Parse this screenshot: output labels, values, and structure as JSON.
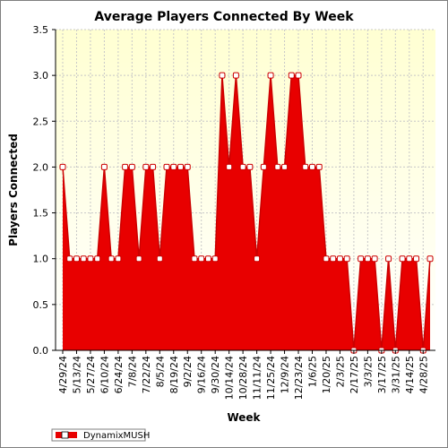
{
  "colors": {
    "plot_background_top": "#ffffd2",
    "plot_background_bottom": "#ffffff",
    "grid": "#c8c8c8",
    "series_fill": "#e80000",
    "series_line": "#cc0000",
    "marker_fill": "#ffffff"
  },
  "chart_data": {
    "type": "area",
    "title": "Average Players Connected By Week",
    "xlabel": "Week",
    "ylabel": "Players Connected",
    "ylim": [
      0,
      3.5
    ],
    "yticks": [
      "0.0",
      "0.5",
      "1.0",
      "1.5",
      "2.0",
      "2.5",
      "3.0",
      "3.5"
    ],
    "grid": true,
    "legend_position": "bottom-left",
    "x_tick_labels": [
      "4/29/24",
      "5/13/24",
      "5/27/24",
      "6/10/24",
      "6/24/24",
      "7/8/24",
      "7/22/24",
      "8/5/24",
      "8/19/24",
      "9/2/24",
      "9/16/24",
      "9/30/24",
      "10/14/24",
      "10/28/24",
      "11/11/24",
      "11/25/24",
      "12/9/24",
      "12/23/24",
      "1/6/25",
      "1/20/25",
      "2/3/25",
      "2/17/25",
      "3/3/25",
      "3/17/25",
      "3/31/25",
      "4/14/25",
      "4/28/25"
    ],
    "series": [
      {
        "name": "DynamixMUSH",
        "values": [
          2,
          1,
          1,
          1,
          1,
          1,
          2,
          1,
          1,
          2,
          2,
          1,
          2,
          2,
          1,
          2,
          2,
          2,
          2,
          1,
          1,
          1,
          1,
          3,
          2,
          3,
          2,
          2,
          1,
          2,
          3,
          2,
          2,
          3,
          3,
          2,
          2,
          2,
          1,
          1,
          1,
          1,
          0,
          1,
          1,
          1,
          0,
          1,
          0,
          1,
          1,
          1,
          0,
          1
        ]
      }
    ]
  }
}
